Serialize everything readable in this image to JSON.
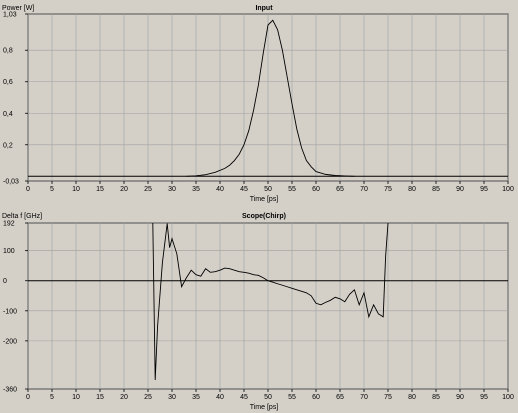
{
  "chart_data": [
    {
      "type": "line",
      "title": "Input",
      "ylabel": "Power [W]",
      "xlabel": "Time [ps]",
      "xlim": [
        0,
        100
      ],
      "ylim": [
        -0.03,
        1.03
      ],
      "grid": true,
      "xticks": [
        0,
        5,
        10,
        15,
        20,
        25,
        30,
        35,
        40,
        45,
        50,
        55,
        60,
        65,
        70,
        75,
        80,
        85,
        90,
        95,
        100
      ],
      "yticks": [
        -0.03,
        0.2,
        0.4,
        0.6,
        0.8,
        1.03
      ],
      "ytick_labels": [
        "-0,03",
        "0,2",
        "0,4",
        "0,6",
        "0,8",
        "1,03"
      ],
      "baseline": 0,
      "series": [
        {
          "color": "#000000",
          "x": [
            33,
            35,
            37,
            39,
            41,
            42,
            43,
            44,
            45,
            46,
            47,
            48,
            49,
            50,
            51,
            52,
            53,
            54,
            55,
            56,
            57,
            58,
            59,
            60,
            62,
            64,
            66,
            68
          ],
          "y": [
            0.0,
            0.003,
            0.01,
            0.025,
            0.05,
            0.07,
            0.1,
            0.14,
            0.2,
            0.29,
            0.42,
            0.58,
            0.78,
            0.96,
            0.99,
            0.93,
            0.8,
            0.63,
            0.46,
            0.3,
            0.18,
            0.1,
            0.06,
            0.03,
            0.012,
            0.005,
            0.002,
            0.0
          ]
        }
      ]
    },
    {
      "type": "line",
      "title": "Scope(Chirp)",
      "ylabel": "Delta f [GHz]",
      "xlabel": "Time [ps]",
      "xlim": [
        0,
        100
      ],
      "ylim": [
        -360,
        192
      ],
      "grid": true,
      "xticks": [
        0,
        5,
        10,
        15,
        20,
        25,
        30,
        35,
        40,
        45,
        50,
        55,
        60,
        65,
        70,
        75,
        80,
        85,
        90,
        95,
        100
      ],
      "yticks": [
        -360,
        -200,
        -100,
        0,
        100,
        192
      ],
      "ytick_labels": [
        "-360",
        "-200",
        "-100",
        "0",
        "100",
        "192"
      ],
      "baseline": 0,
      "series": [
        {
          "color": "#000000",
          "x": [
            26,
            26.5,
            27,
            28,
            29,
            29.5,
            30,
            31,
            32,
            33,
            34,
            35,
            36,
            37,
            38,
            39,
            40,
            41,
            42,
            43,
            44,
            45,
            46,
            47,
            48,
            49,
            50,
            51,
            52,
            53,
            54,
            55,
            56,
            57,
            58,
            59,
            60,
            61,
            62,
            63,
            64,
            65,
            66,
            67,
            68,
            69,
            70,
            71,
            72,
            73,
            74,
            74.5,
            75
          ],
          "y": [
            192,
            -330,
            -150,
            60,
            190,
            110,
            140,
            90,
            -20,
            10,
            35,
            20,
            15,
            40,
            28,
            30,
            35,
            42,
            40,
            35,
            30,
            28,
            25,
            20,
            18,
            10,
            0,
            -5,
            -10,
            -15,
            -20,
            -25,
            -30,
            -35,
            -40,
            -50,
            -75,
            -80,
            -72,
            -65,
            -55,
            -60,
            -70,
            -45,
            -30,
            -80,
            -40,
            -120,
            -80,
            -110,
            -120,
            80,
            192
          ]
        }
      ]
    }
  ]
}
